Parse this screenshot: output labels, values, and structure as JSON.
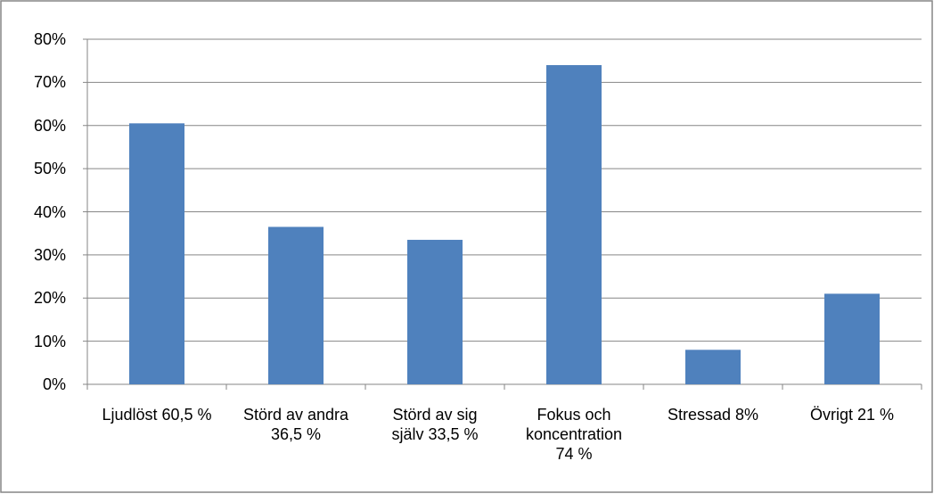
{
  "chart_data": {
    "type": "bar",
    "categories": [
      "Ljudlöst 60,5 %",
      "Störd av andra 36,5 %",
      "Störd av sig själv 33,5 %",
      "Fokus och koncentration 74 %",
      "Stressad 8%",
      "Övrigt 21 %"
    ],
    "values": [
      60.5,
      36.5,
      33.5,
      74,
      8,
      21
    ],
    "color": "#4f81bd",
    "ylim": [
      0,
      80
    ],
    "yticks": [
      {
        "value": 0,
        "label": "0%"
      },
      {
        "value": 10,
        "label": "10%"
      },
      {
        "value": 20,
        "label": "20%"
      },
      {
        "value": 30,
        "label": "30%"
      },
      {
        "value": 40,
        "label": "40%"
      },
      {
        "value": 50,
        "label": "50%"
      },
      {
        "value": 60,
        "label": "60%"
      },
      {
        "value": 70,
        "label": "70%"
      },
      {
        "value": 80,
        "label": "80%"
      }
    ],
    "grid": true
  }
}
